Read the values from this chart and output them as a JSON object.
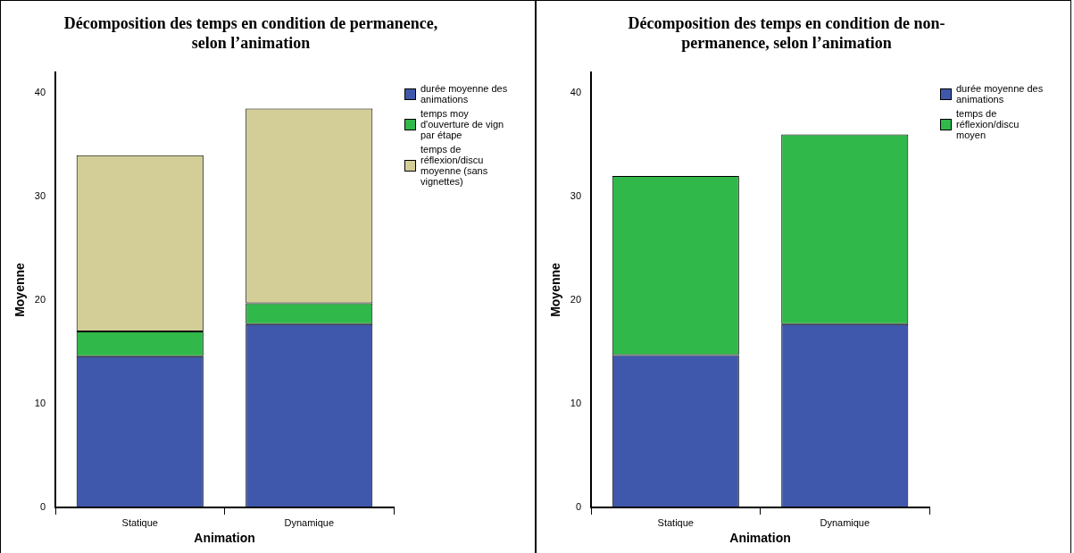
{
  "chart_data": [
    {
      "type": "bar",
      "title": "Décomposition des temps en condition de permanence, selon l’animation",
      "xlabel": "Animation",
      "ylabel": "Moyenne",
      "categories": [
        "Statique",
        "Dynamique"
      ],
      "stacked": true,
      "legend": "right",
      "grid": false,
      "ylim": [
        0,
        42
      ],
      "yticks": [
        0,
        10,
        20,
        30,
        40
      ],
      "series": [
        {
          "name": "durée moyenne des animations",
          "color": "#3f58ab",
          "values": [
            14.6,
            17.7
          ]
        },
        {
          "name": "temps moy d'ouverture de vign par étape",
          "color": "#30b84a",
          "values": [
            2.4,
            2.0
          ]
        },
        {
          "name": "temps de réflexion/discu moyenne (sans vignettes)",
          "color": "#d3ce98",
          "values": [
            17.0,
            18.8
          ]
        }
      ]
    },
    {
      "type": "bar",
      "title": "Décomposition des temps en condition de non-permanence, selon l’animation",
      "xlabel": "Animation",
      "ylabel": "Moyenne",
      "categories": [
        "Statique",
        "Dynamique"
      ],
      "stacked": true,
      "legend": "right",
      "grid": false,
      "ylim": [
        0,
        42
      ],
      "yticks": [
        0,
        10,
        20,
        30,
        40
      ],
      "series": [
        {
          "name": "durée moyenne des animations",
          "color": "#3f58ab",
          "values": [
            14.7,
            17.7
          ]
        },
        {
          "name": "temps de réflexion/discu moyen",
          "color": "#30b84a",
          "values": [
            17.3,
            18.3
          ]
        }
      ]
    }
  ]
}
